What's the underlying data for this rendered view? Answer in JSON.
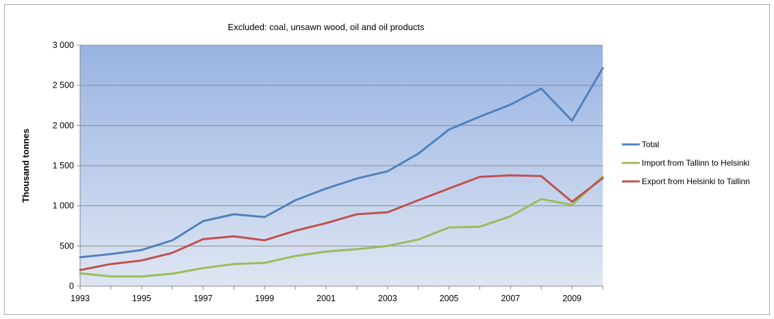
{
  "chart_data": {
    "type": "line",
    "title": "Excluded: coal, unsawn wood, oil and oil products",
    "xlabel": "",
    "ylabel": "Thousand tonnes",
    "x": [
      1993,
      1994,
      1995,
      1996,
      1997,
      1998,
      1999,
      2000,
      2001,
      2002,
      2003,
      2004,
      2005,
      2006,
      2007,
      2008,
      2009,
      2010
    ],
    "x_tick_labels": [
      "1993",
      "1995",
      "1997",
      "1999",
      "2001",
      "2003",
      "2005",
      "2007",
      "2009"
    ],
    "x_ticks": [
      1993,
      1995,
      1997,
      1999,
      2001,
      2003,
      2005,
      2007,
      2009
    ],
    "ylim": [
      0,
      3000
    ],
    "y_ticks": [
      0,
      500,
      1000,
      1500,
      2000,
      2500,
      3000
    ],
    "y_tick_labels": [
      "0",
      "500",
      "1 000",
      "1 500",
      "2 000",
      "2 500",
      "3 000"
    ],
    "grid": true,
    "legend_position": "right",
    "plot_background": [
      "#dfe6f3",
      "#98b3e2"
    ],
    "series": [
      {
        "name": "Total",
        "color": "#4f81bd",
        "values": [
          360,
          400,
          450,
          570,
          810,
          895,
          860,
          1070,
          1215,
          1340,
          1430,
          1650,
          1950,
          2110,
          2260,
          2460,
          2060,
          2715
        ]
      },
      {
        "name": "Import from Tallinn to Helsinki",
        "color": "#9bbb59",
        "values": [
          160,
          120,
          120,
          155,
          225,
          275,
          290,
          375,
          430,
          460,
          500,
          580,
          730,
          740,
          870,
          1085,
          1010,
          1365
        ]
      },
      {
        "name": "Export from Helsinki to Tallinn",
        "color": "#c0504d",
        "values": [
          200,
          275,
          320,
          415,
          585,
          620,
          570,
          690,
          785,
          895,
          920,
          1070,
          1215,
          1360,
          1380,
          1370,
          1050,
          1345
        ]
      }
    ]
  }
}
